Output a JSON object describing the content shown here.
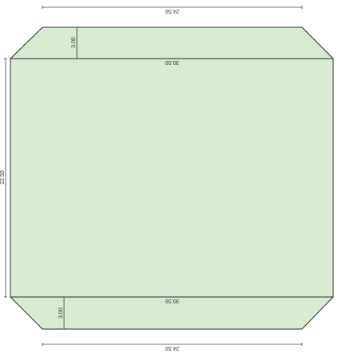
{
  "dimensions": {
    "top_width": "24.50",
    "upper_fold_width": "30.50",
    "upper_flap_depth": "3.00",
    "left_height": "22.50",
    "lower_fold_width": "30.50",
    "lower_flap_depth": "3.00",
    "bottom_width": "24.50"
  },
  "colors": {
    "panel_fill": "#d9ead3",
    "outline": "#2b2b2b"
  }
}
